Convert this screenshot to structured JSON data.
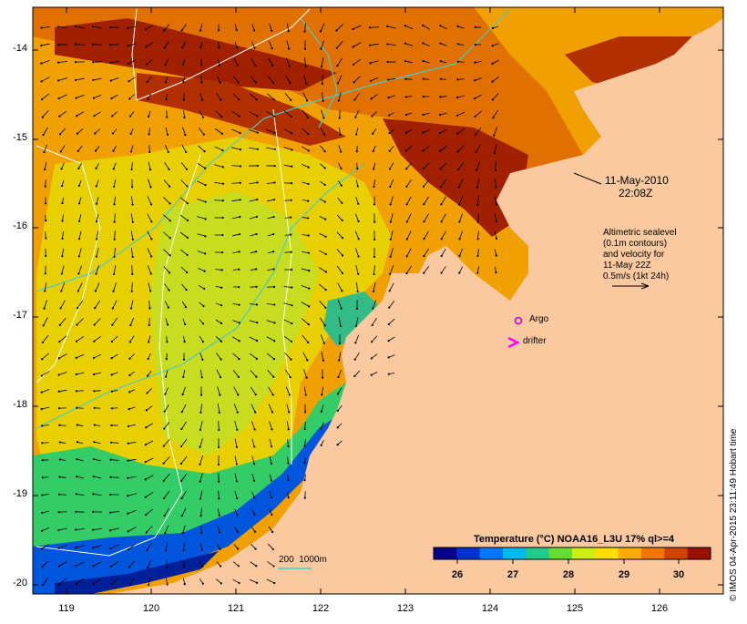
{
  "timestamp": {
    "date": "11-May-2010",
    "time": "22:08Z"
  },
  "sealevel_note": {
    "lines": [
      "Altimetric sealevel",
      "(0.1m contours)",
      "and velocity for",
      "11-May 22Z",
      "0.5m/s (1kt 24h)"
    ]
  },
  "legend": {
    "argo_label": "Argo",
    "drifter_label": "drifter",
    "argo_color": "#cc00cc",
    "drifter_color": "#ff00ff"
  },
  "isobath": {
    "label": "200  1000m",
    "color": "#4cc9c9"
  },
  "colorbar": {
    "title": "Temperature (°C) NOAA16_L3U 17% ql>=4",
    "ticks": [
      "26",
      "27",
      "28",
      "29",
      "30"
    ],
    "colors": [
      "#00008b",
      "#0033cc",
      "#0077ff",
      "#00bbee",
      "#22cc88",
      "#66dd33",
      "#ccee11",
      "#ffdd00",
      "#ffaa00",
      "#ee7700",
      "#cc4400",
      "#991100"
    ]
  },
  "axes": {
    "lat_ticks": [
      "-14",
      "-15",
      "-16",
      "-17",
      "-18",
      "-19",
      "-20"
    ],
    "lon_ticks": [
      "119",
      "120",
      "121",
      "122",
      "123",
      "124",
      "125",
      "126"
    ]
  },
  "credit": "© IMOS 04-Apr-2015 23:11:49 Hobart time",
  "colors": {
    "land": "#fbc99f",
    "frame": "#000000"
  }
}
